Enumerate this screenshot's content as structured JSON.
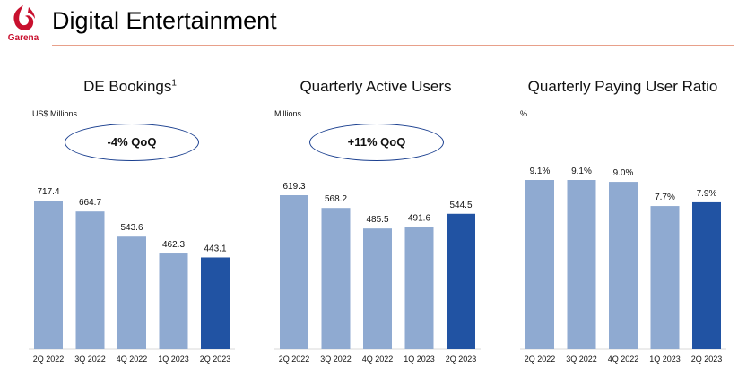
{
  "header": {
    "title": "Digital Entertainment",
    "logo_text": "Garena"
  },
  "colors": {
    "bar": "#8faad1",
    "bar_highlight": "#2153a3",
    "rule": "#e8a08a",
    "logo": "#c8102e"
  },
  "chart_data": [
    {
      "type": "bar",
      "title": "DE Bookings",
      "title_sup": "1",
      "unit": "US$ Millions",
      "callout": "-4% QoQ",
      "categories": [
        "2Q 2022",
        "3Q 2022",
        "4Q 2022",
        "1Q 2023",
        "2Q 2023"
      ],
      "values": [
        717.4,
        664.7,
        543.6,
        462.3,
        443.1
      ],
      "value_labels": [
        "717.4",
        "664.7",
        "543.6",
        "462.3",
        "443.1"
      ],
      "highlight_last": true
    },
    {
      "type": "bar",
      "title": "Quarterly Active Users",
      "unit": "Millions",
      "callout": "+11% QoQ",
      "categories": [
        "2Q 2022",
        "3Q 2022",
        "4Q 2022",
        "1Q 2023",
        "2Q 2023"
      ],
      "values": [
        619.3,
        568.2,
        485.5,
        491.6,
        544.5
      ],
      "value_labels": [
        "619.3",
        "568.2",
        "485.5",
        "491.6",
        "544.5"
      ],
      "highlight_last": true
    },
    {
      "type": "bar",
      "title": "Quarterly Paying User Ratio",
      "unit": "%",
      "categories": [
        "2Q 2022",
        "3Q 2022",
        "4Q 2022",
        "1Q 2023",
        "2Q 2023"
      ],
      "values": [
        9.1,
        9.1,
        9.0,
        7.7,
        7.9
      ],
      "value_labels": [
        "9.1%",
        "9.1%",
        "9.0%",
        "7.7%",
        "7.9%"
      ],
      "highlight_last": true
    }
  ]
}
